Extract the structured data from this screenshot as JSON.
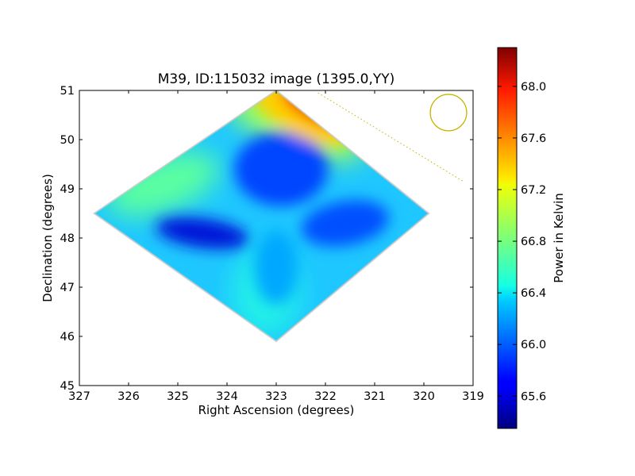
{
  "chart_data": {
    "type": "heatmap",
    "title": "M39, ID:115032 image (1395.0,YY)",
    "xlabel": "Right Ascension (degrees)",
    "ylabel": "Declination (degrees)",
    "xlim": [
      327,
      319
    ],
    "ylim": [
      45,
      51
    ],
    "x_ticks": [
      "327",
      "326",
      "325",
      "324",
      "323",
      "322",
      "321",
      "320",
      "319"
    ],
    "y_ticks": [
      "45",
      "46",
      "47",
      "48",
      "49",
      "50",
      "51"
    ],
    "colorbar": {
      "label": "Power in Kelvin",
      "range": [
        65.35,
        68.3
      ],
      "colormap": "jet",
      "ticks": [
        "65.6",
        "66.0",
        "66.4",
        "66.8",
        "67.2",
        "67.6",
        "68.0"
      ]
    },
    "footprint_vertices_ra_dec": [
      [
        323.0,
        51.0
      ],
      [
        319.9,
        48.5
      ],
      [
        323.0,
        45.9
      ],
      [
        326.7,
        48.5
      ]
    ],
    "field_center": [
      323.0,
      48.5
    ],
    "features": {
      "hot_spot_ra_dec": [
        322.3,
        50.7
      ],
      "hot_spot_value": 68.2,
      "low_value": 65.5,
      "background_value": 66.3
    },
    "beam": {
      "center_ra_dec": [
        319.5,
        50.55
      ],
      "radius_deg": 0.37,
      "color": "#c8b400"
    },
    "dotted_line_ra_dec": [
      [
        322.15,
        50.95
      ],
      [
        319.2,
        49.15
      ]
    ],
    "dotted_line_color": "#c8b400"
  }
}
